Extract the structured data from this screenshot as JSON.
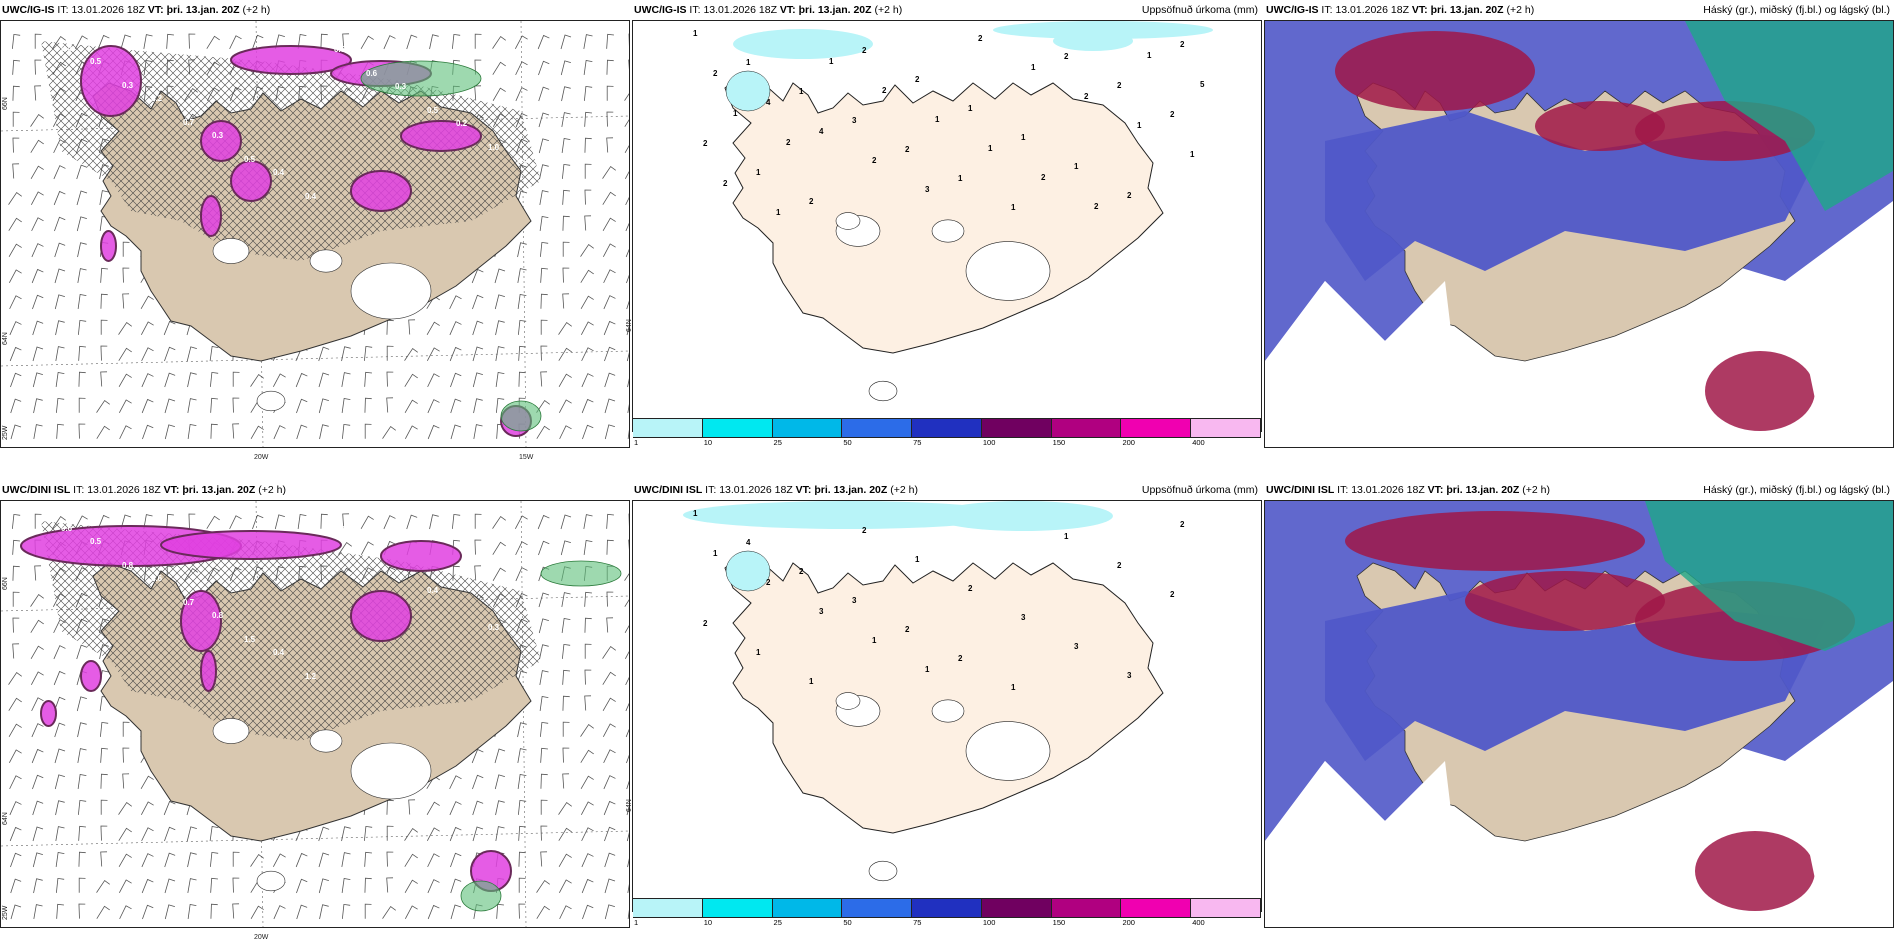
{
  "panels": [
    {
      "model": "UWC/IG-IS",
      "it_label": "IT:",
      "it": "13.01.2026 18Z",
      "vt_label": "VT:",
      "vt": "þri. 13.jan. 20Z",
      "lead": "(+2 h)",
      "title": "",
      "lat_labels": [
        "66N",
        "64N"
      ],
      "lon_labels": [
        "25W",
        "20W",
        "15W"
      ]
    },
    {
      "model": "UWC/IG-IS",
      "it_label": "IT:",
      "it": "13.01.2026 18Z",
      "vt_label": "VT:",
      "vt": "þri. 13.jan. 20Z",
      "lead": "(+2 h)",
      "title": "Uppsöfnuð úrkoma (mm)",
      "lat_labels": [
        "64N"
      ],
      "lon_labels": []
    },
    {
      "model": "UWC/IG-IS",
      "it_label": "IT:",
      "it": "13.01.2026 18Z",
      "vt_label": "VT:",
      "vt": "þri. 13.jan. 20Z",
      "lead": "(+2 h)",
      "title": "Háský (gr.), miðský (fj.bl.) og lágský (bl.)",
      "lat_labels": [],
      "lon_labels": []
    },
    {
      "model": "UWC/DINI ISL",
      "it_label": "IT:",
      "it": "13.01.2026 18Z",
      "vt_label": "VT:",
      "vt": "þri. 13.jan. 20Z",
      "lead": "(+2 h)",
      "title": "",
      "lat_labels": [
        "66N",
        "64N"
      ],
      "lon_labels": [
        "25W",
        "20W"
      ]
    },
    {
      "model": "UWC/DINI ISL",
      "it_label": "IT:",
      "it": "13.01.2026 18Z",
      "vt_label": "VT:",
      "vt": "þri. 13.jan. 20Z",
      "lead": "(+2 h)",
      "title": "Uppsöfnuð úrkoma (mm)",
      "lat_labels": [
        "64N"
      ],
      "lon_labels": []
    },
    {
      "model": "UWC/DINI ISL",
      "it_label": "IT:",
      "it": "13.01.2026 18Z",
      "vt_label": "VT:",
      "vt": "þri. 13.jan. 20Z",
      "lead": "(+2 h)",
      "title": "Háský (gr.), miðský (fj.bl.) og lágský (bl.)",
      "lat_labels": [],
      "lon_labels": []
    }
  ],
  "precip_colorbar": {
    "colors": [
      "#b8f4f8",
      "#00e8f0",
      "#00b8e8",
      "#2c6ce8",
      "#2030c0",
      "#700060",
      "#b00080",
      "#f000b0",
      "#f8b8f0"
    ],
    "labels": [
      "1",
      "10",
      "25",
      "50",
      "75",
      "100",
      "150",
      "200",
      "400"
    ]
  },
  "precip_values_top": [
    "1",
    "1",
    "1",
    "3",
    "2",
    "1",
    "1",
    "2",
    "2",
    "2",
    "2",
    "1",
    "2",
    "2",
    "2",
    "1",
    "1",
    "1",
    "2",
    "2",
    "2",
    "4",
    "4",
    "2",
    "3",
    "2",
    "1",
    "2",
    "1",
    "1",
    "2",
    "1",
    "1",
    "2",
    "1",
    "1",
    "2",
    "2",
    "1",
    "5",
    "1",
    "2"
  ],
  "precip_values_bottom": [
    "1",
    "4",
    "2",
    "3",
    "2",
    "2",
    "1",
    "1",
    "2",
    "2",
    "2",
    "1",
    "1",
    "2",
    "1",
    "2",
    "3",
    "3",
    "3",
    "2",
    "1",
    "2",
    "3",
    "1",
    "1"
  ],
  "cloud_value_labels_top": [
    "0.4",
    "0.3",
    "0.7",
    "0.5",
    "0.4",
    "0.6",
    "0.5",
    "1.0",
    "0.8",
    "0.5",
    "0.2",
    "0.3",
    "0.4",
    "0.5",
    "0.3",
    "0.2",
    "0.4"
  ],
  "cloud_value_labels_bottom": [
    "0.6",
    "0.8",
    "0.7",
    "1.5",
    "1.2",
    "0.6",
    "0.4",
    "0.3",
    "0.2",
    "0.5",
    "0.6",
    "0.8",
    "0.4",
    "0.3"
  ],
  "colors": {
    "land": "#d9c8b0",
    "land_precip": "#fdf0e3",
    "cloud_magenta": "#e040e0",
    "cloud_dark": "#6a2a5a",
    "cloud_green": "#5ec07a",
    "sky_blue": "#5058c8",
    "sky_red": "#a01848",
    "sky_teal": "#1ea888"
  }
}
